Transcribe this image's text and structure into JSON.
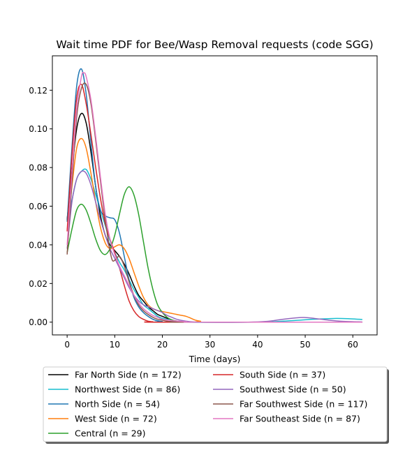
{
  "chart_data": {
    "type": "line",
    "title": "Wait time PDF for Bee/Wasp Removal  requests (code SGG)",
    "xlabel": "Time (days)",
    "ylabel": "",
    "xlim": [
      -3.1,
      65.1
    ],
    "ylim": [
      -0.0066,
      0.1378
    ],
    "xticks": [
      0,
      10,
      20,
      30,
      40,
      50,
      60
    ],
    "yticks": [
      0.0,
      0.02,
      0.04,
      0.06,
      0.08,
      0.1,
      0.12
    ],
    "ytick_labels": [
      "0.00",
      "0.02",
      "0.04",
      "0.06",
      "0.08",
      "0.10",
      "0.12"
    ],
    "grid": false,
    "legend_position": "below plot, two columns",
    "series": [
      {
        "name": "Far North Side (n = 172)",
        "color": "#000000",
        "points": [
          [
            0,
            0.053
          ],
          [
            1,
            0.078
          ],
          [
            2,
            0.1
          ],
          [
            3,
            0.108
          ],
          [
            4,
            0.103
          ],
          [
            5,
            0.088
          ],
          [
            6,
            0.07
          ],
          [
            7,
            0.055
          ],
          [
            8,
            0.045
          ],
          [
            9,
            0.04
          ],
          [
            10,
            0.037
          ],
          [
            11,
            0.034
          ],
          [
            12,
            0.03
          ],
          [
            13,
            0.025
          ],
          [
            14,
            0.019
          ],
          [
            15,
            0.014
          ],
          [
            16,
            0.011
          ],
          [
            17,
            0.008
          ],
          [
            18,
            0.006
          ],
          [
            19,
            0.004
          ],
          [
            20,
            0.003
          ],
          [
            21,
            0.002
          ],
          [
            22,
            0.001
          ],
          [
            24,
            0.0003
          ],
          [
            27,
            0
          ],
          [
            62,
            0
          ]
        ]
      },
      {
        "name": "Northwest Side (n = 86)",
        "color": "#17becf",
        "points": [
          [
            0,
            0.052
          ],
          [
            1,
            0.063
          ],
          [
            2,
            0.074
          ],
          [
            3,
            0.078
          ],
          [
            4,
            0.079
          ],
          [
            5,
            0.074
          ],
          [
            6,
            0.066
          ],
          [
            7,
            0.058
          ],
          [
            8,
            0.05
          ],
          [
            9,
            0.042
          ],
          [
            10,
            0.036
          ],
          [
            11,
            0.031
          ],
          [
            12,
            0.027
          ],
          [
            13,
            0.022
          ],
          [
            14,
            0.017
          ],
          [
            15,
            0.013
          ],
          [
            16,
            0.009
          ],
          [
            17,
            0.007
          ],
          [
            18,
            0.005
          ],
          [
            19,
            0.003
          ],
          [
            20,
            0.002
          ],
          [
            22,
            0.001
          ],
          [
            25,
            0
          ],
          [
            40,
            0
          ],
          [
            44,
            0.0003
          ],
          [
            48,
            0.0009
          ],
          [
            52,
            0.0015
          ],
          [
            56,
            0.0019
          ],
          [
            59,
            0.0018
          ],
          [
            62,
            0.0014
          ]
        ]
      },
      {
        "name": "North Side (n = 54)",
        "color": "#1f77b4",
        "points": [
          [
            0,
            0.052
          ],
          [
            1,
            0.09
          ],
          [
            2,
            0.122
          ],
          [
            3,
            0.131
          ],
          [
            4,
            0.118
          ],
          [
            5,
            0.093
          ],
          [
            6,
            0.07
          ],
          [
            7,
            0.058
          ],
          [
            8,
            0.055
          ],
          [
            9,
            0.054
          ],
          [
            10,
            0.053
          ],
          [
            11,
            0.046
          ],
          [
            12,
            0.034
          ],
          [
            13,
            0.022
          ],
          [
            14,
            0.013
          ],
          [
            15,
            0.008
          ],
          [
            16,
            0.005
          ],
          [
            17,
            0.003
          ],
          [
            18,
            0.0015
          ],
          [
            19,
            0.0007
          ],
          [
            20,
            0.0003
          ],
          [
            22,
            0
          ],
          [
            62,
            0
          ]
        ]
      },
      {
        "name": "West Side (n = 72)",
        "color": "#ff7f0e",
        "points": [
          [
            0,
            0.047
          ],
          [
            1,
            0.07
          ],
          [
            2,
            0.09
          ],
          [
            3,
            0.095
          ],
          [
            4,
            0.09
          ],
          [
            5,
            0.077
          ],
          [
            6,
            0.062
          ],
          [
            7,
            0.049
          ],
          [
            8,
            0.041
          ],
          [
            9,
            0.038
          ],
          [
            10,
            0.039
          ],
          [
            11,
            0.04
          ],
          [
            12,
            0.038
          ],
          [
            13,
            0.033
          ],
          [
            14,
            0.026
          ],
          [
            15,
            0.019
          ],
          [
            16,
            0.013
          ],
          [
            17,
            0.009
          ],
          [
            18,
            0.007
          ],
          [
            19,
            0.006
          ],
          [
            20,
            0.0055
          ],
          [
            21,
            0.005
          ],
          [
            22,
            0.0045
          ],
          [
            23,
            0.004
          ],
          [
            24,
            0.0035
          ],
          [
            25,
            0.003
          ],
          [
            26,
            0.002
          ],
          [
            27,
            0.001
          ],
          [
            28,
            0.0005
          ],
          [
            30,
            0
          ],
          [
            62,
            0
          ]
        ]
      },
      {
        "name": "Central (n = 29)",
        "color": "#2ca02c",
        "points": [
          [
            0,
            0.036
          ],
          [
            1,
            0.048
          ],
          [
            2,
            0.058
          ],
          [
            3,
            0.061
          ],
          [
            4,
            0.058
          ],
          [
            5,
            0.051
          ],
          [
            6,
            0.043
          ],
          [
            7,
            0.037
          ],
          [
            8,
            0.035
          ],
          [
            9,
            0.038
          ],
          [
            10,
            0.045
          ],
          [
            11,
            0.056
          ],
          [
            12,
            0.066
          ],
          [
            13,
            0.07
          ],
          [
            14,
            0.066
          ],
          [
            15,
            0.056
          ],
          [
            16,
            0.042
          ],
          [
            17,
            0.028
          ],
          [
            18,
            0.017
          ],
          [
            19,
            0.009
          ],
          [
            20,
            0.005
          ],
          [
            21,
            0.0025
          ],
          [
            22,
            0.0012
          ],
          [
            23,
            0.0005
          ],
          [
            25,
            0
          ],
          [
            62,
            0
          ]
        ]
      },
      {
        "name": "South Side (n = 37)",
        "color": "#d62728",
        "points": [
          [
            0,
            0.047
          ],
          [
            1,
            0.086
          ],
          [
            2,
            0.116
          ],
          [
            3,
            0.123
          ],
          [
            4,
            0.113
          ],
          [
            5,
            0.097
          ],
          [
            6,
            0.08
          ],
          [
            7,
            0.064
          ],
          [
            8,
            0.051
          ],
          [
            9,
            0.043
          ],
          [
            10,
            0.036
          ],
          [
            11,
            0.028
          ],
          [
            12,
            0.019
          ],
          [
            13,
            0.011
          ],
          [
            14,
            0.006
          ],
          [
            15,
            0.003
          ],
          [
            16,
            0.0015
          ],
          [
            17,
            0.0005
          ],
          [
            18,
            0.0002
          ],
          [
            20,
            0
          ],
          [
            62,
            0
          ]
        ]
      },
      {
        "name": "Southwest Side (n = 50)",
        "color": "#9467bd",
        "points": [
          [
            0,
            0.038
          ],
          [
            1,
            0.062
          ],
          [
            2,
            0.074
          ],
          [
            3,
            0.078
          ],
          [
            4,
            0.077
          ],
          [
            5,
            0.071
          ],
          [
            6,
            0.062
          ],
          [
            7,
            0.053
          ],
          [
            8,
            0.045
          ],
          [
            9,
            0.038
          ],
          [
            10,
            0.033
          ],
          [
            11,
            0.028
          ],
          [
            12,
            0.023
          ],
          [
            13,
            0.018
          ],
          [
            14,
            0.014
          ],
          [
            15,
            0.011
          ],
          [
            16,
            0.009
          ],
          [
            17,
            0.008
          ],
          [
            18,
            0.007
          ],
          [
            19,
            0.006
          ],
          [
            20,
            0.005
          ],
          [
            21,
            0.0035
          ],
          [
            22,
            0.0025
          ],
          [
            23,
            0.0015
          ],
          [
            25,
            0.0005
          ],
          [
            28,
            0
          ],
          [
            38,
            0
          ],
          [
            42,
            0.0004
          ],
          [
            45,
            0.0014
          ],
          [
            48,
            0.0022
          ],
          [
            50,
            0.0024
          ],
          [
            52,
            0.0019
          ],
          [
            55,
            0.001
          ],
          [
            58,
            0.0004
          ],
          [
            62,
            0.0001
          ]
        ]
      },
      {
        "name": "Far Southwest Side (n = 117)",
        "color": "#8c564b",
        "points": [
          [
            0,
            0.035
          ],
          [
            1,
            0.072
          ],
          [
            2,
            0.106
          ],
          [
            3,
            0.121
          ],
          [
            4,
            0.123
          ],
          [
            5,
            0.113
          ],
          [
            6,
            0.094
          ],
          [
            7,
            0.073
          ],
          [
            8,
            0.053
          ],
          [
            9,
            0.037
          ],
          [
            9.5,
            0.032
          ],
          [
            10,
            0.032
          ],
          [
            11,
            0.034
          ],
          [
            12,
            0.029
          ],
          [
            13,
            0.021
          ],
          [
            14,
            0.014
          ],
          [
            15,
            0.009
          ],
          [
            16,
            0.006
          ],
          [
            17,
            0.004
          ],
          [
            18,
            0.0025
          ],
          [
            19,
            0.0015
          ],
          [
            20,
            0.001
          ],
          [
            21,
            0.0005
          ],
          [
            23,
            0.0002
          ],
          [
            25,
            0
          ],
          [
            62,
            0
          ]
        ]
      },
      {
        "name": "Far Southeast Side (n = 87)",
        "color": "#e377c2",
        "points": [
          [
            0,
            0.04
          ],
          [
            1,
            0.077
          ],
          [
            2,
            0.11
          ],
          [
            3,
            0.127
          ],
          [
            3.5,
            0.129
          ],
          [
            4,
            0.127
          ],
          [
            5,
            0.115
          ],
          [
            6,
            0.096
          ],
          [
            7,
            0.075
          ],
          [
            8,
            0.056
          ],
          [
            9,
            0.043
          ],
          [
            10,
            0.035
          ],
          [
            11,
            0.029
          ],
          [
            12,
            0.024
          ],
          [
            13,
            0.019
          ],
          [
            14,
            0.014
          ],
          [
            15,
            0.01
          ],
          [
            16,
            0.007
          ],
          [
            17,
            0.005
          ],
          [
            18,
            0.0035
          ],
          [
            19,
            0.0025
          ],
          [
            20,
            0.0015
          ],
          [
            22,
            0.0008
          ],
          [
            25,
            0.0002
          ],
          [
            28,
            0
          ],
          [
            62,
            0
          ]
        ]
      }
    ]
  }
}
